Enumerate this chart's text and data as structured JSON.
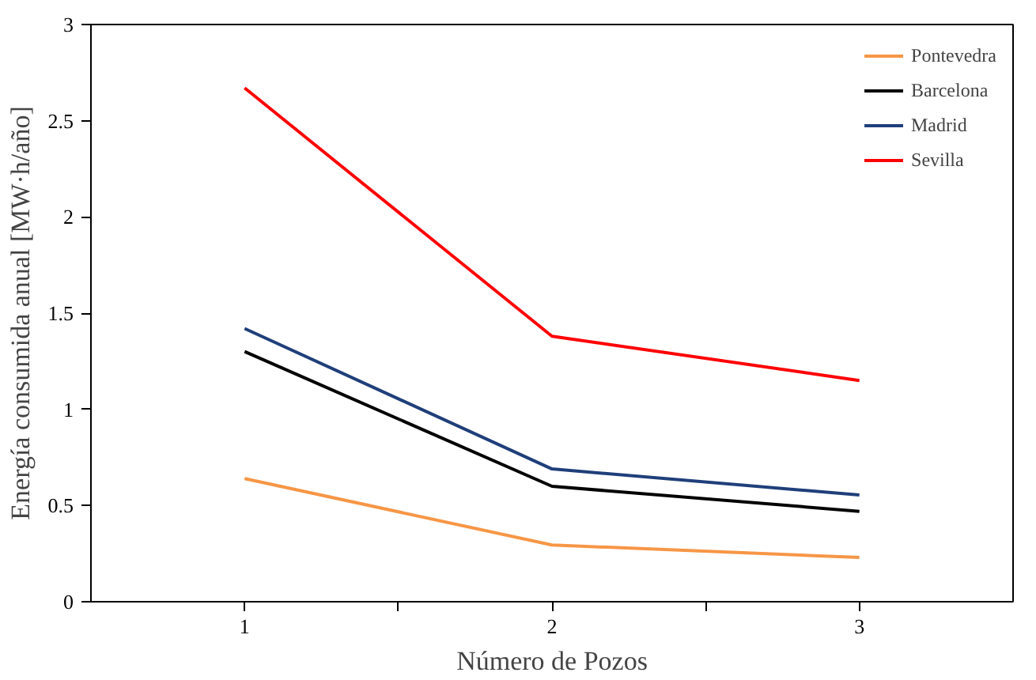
{
  "chart_data": {
    "type": "line",
    "xlabel": "Número de Pozos",
    "ylabel": "Energía consumida anual [MW·h/año]",
    "x": [
      1,
      2,
      3
    ],
    "xlim": [
      0.5,
      3.5
    ],
    "xticks": [
      {
        "value": 1,
        "label": "1"
      },
      {
        "value": 1.5,
        "label": null
      },
      {
        "value": 2,
        "label": "2"
      },
      {
        "value": 2.5,
        "label": null
      },
      {
        "value": 3,
        "label": "3"
      }
    ],
    "ylim": [
      0,
      3
    ],
    "yticks": [
      0,
      0.5,
      1,
      1.5,
      2,
      2.5,
      3
    ],
    "grid": false,
    "legend": "top right",
    "marker": "none",
    "series": [
      {
        "name": "Pontevedra",
        "color": "#f79646",
        "values": [
          0.64,
          0.295,
          0.23
        ]
      },
      {
        "name": "Barcelona",
        "color": "#000000",
        "values": [
          1.3,
          0.6,
          0.47
        ]
      },
      {
        "name": "Madrid",
        "color": "#1f3f7a",
        "values": [
          1.42,
          0.69,
          0.555
        ]
      },
      {
        "name": "Sevilla",
        "color": "#ff0000",
        "values": [
          2.67,
          1.38,
          1.15
        ]
      }
    ]
  }
}
